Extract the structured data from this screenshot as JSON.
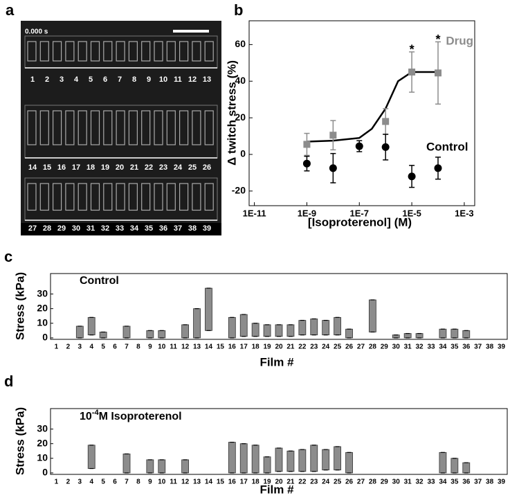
{
  "image_panel": {
    "panel_label": "a",
    "timestamp": "0.000 s",
    "film_labels": [
      "1",
      "2",
      "3",
      "4",
      "5",
      "6",
      "7",
      "8",
      "9",
      "10",
      "11",
      "12",
      "13",
      "14",
      "15",
      "16",
      "17",
      "18",
      "19",
      "20",
      "21",
      "22",
      "23",
      "24",
      "25",
      "26",
      "27",
      "28",
      "29",
      "30",
      "31",
      "32",
      "33",
      "34",
      "35",
      "36",
      "37",
      "38",
      "39"
    ]
  },
  "chart_data": [
    {
      "type": "scatter",
      "panel_label": "b",
      "x_label": "[Isoproterenol] (M)",
      "y_label": "Δ twitch stress (%)",
      "log_x": true,
      "xlim": [
        6.3e-12,
        0.0025
      ],
      "xticks": [
        {
          "value": 1e-11,
          "label": "1E-11"
        },
        {
          "value": 1e-09,
          "label": "1E-9"
        },
        {
          "value": 1e-07,
          "label": "1E-7"
        },
        {
          "value": 1e-05,
          "label": "1E-5"
        },
        {
          "value": 0.001,
          "label": "1E-3"
        }
      ],
      "ylim": [
        -28,
        73
      ],
      "yticks": [
        -20,
        0,
        20,
        40,
        60
      ],
      "series": [
        {
          "name": "Drug",
          "color": "#8c8c8c",
          "marker": "square",
          "x": [
            1e-09,
            1e-08,
            1e-06,
            1e-05,
            0.0001
          ],
          "values": [
            5.5,
            10.5,
            18,
            45,
            44.5
          ],
          "errors": [
            6,
            8,
            7,
            11,
            17
          ]
        },
        {
          "name": "Control",
          "color": "#000000",
          "marker": "circle",
          "x": [
            1e-09,
            1e-08,
            1e-07,
            1e-06,
            1e-05,
            0.0001
          ],
          "values": [
            -5,
            -7.5,
            4.5,
            4,
            -12,
            -7.5
          ],
          "errors": [
            4,
            8,
            3,
            7,
            6,
            6
          ]
        }
      ],
      "fit": {
        "color": "#000000",
        "x": [
          1e-09,
          1e-08,
          1e-07,
          3e-07,
          1e-06,
          3e-06,
          1e-05,
          0.0001
        ],
        "values": [
          7,
          7.5,
          9,
          14,
          25,
          40,
          45,
          45
        ]
      },
      "significance": [
        "*",
        "*"
      ]
    },
    {
      "type": "floating_bar",
      "panel_label": "c",
      "annotation": "Control",
      "x_label": "Film #",
      "y_label": "Stress (kPa)",
      "color": "#8c8c8c",
      "categories": [
        "1",
        "2",
        "3",
        "4",
        "5",
        "6",
        "7",
        "8",
        "9",
        "10",
        "11",
        "12",
        "13",
        "14",
        "15",
        "16",
        "17",
        "18",
        "19",
        "20",
        "21",
        "22",
        "23",
        "24",
        "25",
        "26",
        "27",
        "28",
        "29",
        "30",
        "31",
        "32",
        "33",
        "34",
        "35",
        "36",
        "37",
        "38",
        "39"
      ],
      "ylim": [
        -1,
        44
      ],
      "yticks": [
        0,
        10,
        20,
        30
      ],
      "low": [
        null,
        null,
        0,
        2,
        0,
        null,
        0,
        null,
        0,
        0,
        null,
        0,
        0,
        5,
        null,
        0,
        1,
        1,
        1,
        1,
        1,
        2,
        2,
        2,
        2,
        0,
        null,
        4,
        null,
        0,
        0,
        0,
        null,
        0,
        0,
        0,
        null,
        null,
        null
      ],
      "high": [
        null,
        null,
        8,
        14,
        4,
        null,
        8,
        null,
        5,
        5,
        null,
        9,
        20,
        34,
        null,
        14,
        16,
        10,
        9,
        9,
        9,
        12,
        13,
        12,
        14,
        6,
        null,
        26,
        null,
        2,
        3,
        3,
        null,
        6,
        6,
        5,
        null,
        null,
        null
      ]
    },
    {
      "type": "floating_bar",
      "panel_label": "d",
      "annotation": {
        "base": "10",
        "sup": "-4",
        "rest": "M Isoproterenol"
      },
      "x_label": "Film #",
      "y_label": "Stress (kPa)",
      "color": "#8c8c8c",
      "categories": [
        "1",
        "2",
        "3",
        "4",
        "5",
        "6",
        "7",
        "8",
        "9",
        "10",
        "11",
        "12",
        "13",
        "14",
        "15",
        "16",
        "17",
        "18",
        "19",
        "20",
        "21",
        "22",
        "23",
        "24",
        "25",
        "26",
        "27",
        "28",
        "29",
        "30",
        "31",
        "32",
        "33",
        "34",
        "35",
        "36",
        "37",
        "38",
        "39"
      ],
      "ylim": [
        -1,
        44
      ],
      "yticks": [
        0,
        10,
        20,
        30
      ],
      "low": [
        null,
        null,
        null,
        3,
        null,
        null,
        0,
        null,
        0,
        0,
        null,
        0,
        null,
        null,
        null,
        0,
        0,
        0,
        0,
        1,
        1,
        1,
        1,
        2,
        2,
        0,
        null,
        null,
        null,
        null,
        null,
        null,
        null,
        0,
        0,
        0,
        null,
        null,
        null
      ],
      "high": [
        null,
        null,
        null,
        19,
        null,
        null,
        13,
        null,
        9,
        9,
        null,
        9,
        null,
        null,
        null,
        21,
        20,
        19,
        11,
        17,
        15,
        16,
        19,
        16,
        18,
        14,
        null,
        null,
        null,
        null,
        null,
        null,
        null,
        14,
        10,
        7,
        null,
        null,
        null
      ]
    }
  ]
}
